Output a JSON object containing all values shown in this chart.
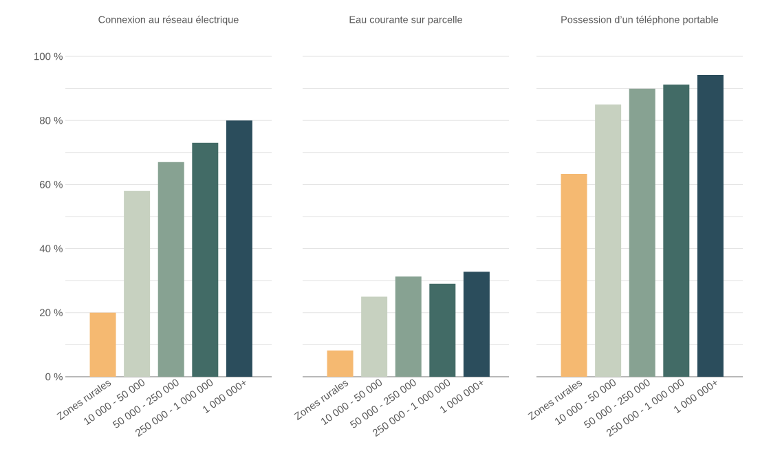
{
  "chart_data": [
    {
      "type": "bar",
      "title": "Connexion au réseau électrique",
      "categories": [
        "Zones rurales",
        "10 000 - 50 000",
        "50 000 - 250 000",
        "250 000 - 1 000 000",
        "1 000 000+"
      ],
      "values": [
        20,
        58,
        67,
        73,
        80
      ],
      "colors": [
        "#f5b971",
        "#c7d1c0",
        "#87a292",
        "#426b66",
        "#2b4d5c"
      ],
      "ylim": [
        0,
        100
      ],
      "yticks": [
        {
          "value": 0,
          "label": "0 %"
        },
        {
          "value": 10,
          "label": null
        },
        {
          "value": 20,
          "label": "20 %"
        },
        {
          "value": 30,
          "label": null
        },
        {
          "value": 40,
          "label": "40 %"
        },
        {
          "value": 50,
          "label": null
        },
        {
          "value": 60,
          "label": "60 %"
        },
        {
          "value": 70,
          "label": null
        },
        {
          "value": 80,
          "label": "80 %"
        },
        {
          "value": 90,
          "label": null
        },
        {
          "value": 100,
          "label": "100 %"
        }
      ],
      "grid": "y"
    },
    {
      "type": "bar",
      "title": "Eau courante sur parcelle",
      "categories": [
        "Zones rurales",
        "10 000 - 50 000",
        "50 000 - 250 000",
        "250 000 - 1 000 000",
        "1 000 000+"
      ],
      "values": [
        8.2,
        25,
        31.3,
        29,
        32.8
      ],
      "colors": [
        "#f5b971",
        "#c7d1c0",
        "#87a292",
        "#426b66",
        "#2b4d5c"
      ],
      "ylim": [
        0,
        100
      ],
      "yticks": [
        {
          "value": 0,
          "label": null
        },
        {
          "value": 10,
          "label": null
        },
        {
          "value": 20,
          "label": null
        },
        {
          "value": 30,
          "label": null
        },
        {
          "value": 40,
          "label": null
        },
        {
          "value": 50,
          "label": null
        },
        {
          "value": 60,
          "label": null
        },
        {
          "value": 70,
          "label": null
        },
        {
          "value": 80,
          "label": null
        },
        {
          "value": 90,
          "label": null
        },
        {
          "value": 100,
          "label": null
        }
      ],
      "grid": "y",
      "tick_labels": "x"
    },
    {
      "type": "bar",
      "title": "Possession d’un téléphone portable",
      "categories": [
        "Zones rurales",
        "10 000 - 50 000",
        "50 000 - 250 000",
        "250 000 - 1 000 000",
        "1 000 000+"
      ],
      "values": [
        63.3,
        85,
        89.9,
        91.2,
        94.2
      ],
      "colors": [
        "#f5b971",
        "#c7d1c0",
        "#87a292",
        "#426b66",
        "#2b4d5c"
      ],
      "ylim": [
        0,
        100
      ],
      "yticks": [
        {
          "value": 0,
          "label": null
        },
        {
          "value": 10,
          "label": null
        },
        {
          "value": 20,
          "label": null
        },
        {
          "value": 30,
          "label": null
        },
        {
          "value": 40,
          "label": null
        },
        {
          "value": 50,
          "label": null
        },
        {
          "value": 60,
          "label": null
        },
        {
          "value": 70,
          "label": null
        },
        {
          "value": 80,
          "label": null
        },
        {
          "value": 90,
          "label": null
        },
        {
          "value": 100,
          "label": null
        }
      ],
      "grid": "y",
      "tick_labels": "x"
    }
  ]
}
